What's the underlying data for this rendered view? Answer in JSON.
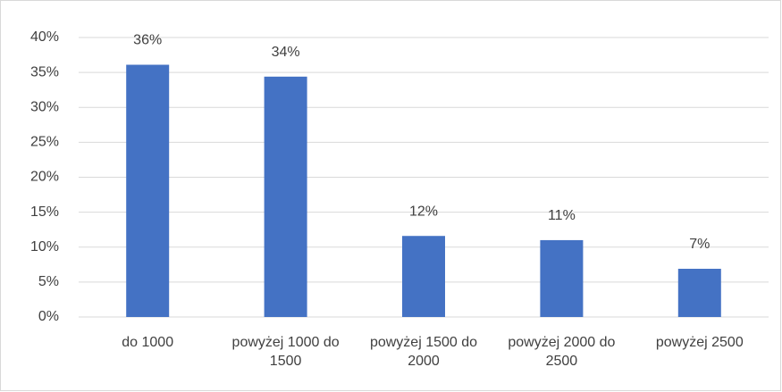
{
  "chart_data": {
    "type": "bar",
    "categories": [
      "do 1000",
      "powyżej 1000 do 1500",
      "powyżej 1500 do 2000",
      "powyżej 2000 do 2500",
      "powyżej 2500"
    ],
    "values": [
      36.1,
      34.4,
      11.6,
      11.0,
      6.9
    ],
    "value_labels": [
      "36%",
      "34%",
      "12%",
      "11%",
      "7%"
    ],
    "color": "#4472c4",
    "ylim": [
      0,
      40
    ],
    "yticks": [
      {
        "value": 0,
        "label": "0%"
      },
      {
        "value": 5,
        "label": "5%"
      },
      {
        "value": 10,
        "label": "10%"
      },
      {
        "value": 15,
        "label": "15%"
      },
      {
        "value": 20,
        "label": "20%"
      },
      {
        "value": 25,
        "label": "25%"
      },
      {
        "value": 30,
        "label": "30%"
      },
      {
        "value": 35,
        "label": "35%"
      },
      {
        "value": 40,
        "label": "40%"
      }
    ],
    "grid": true
  }
}
